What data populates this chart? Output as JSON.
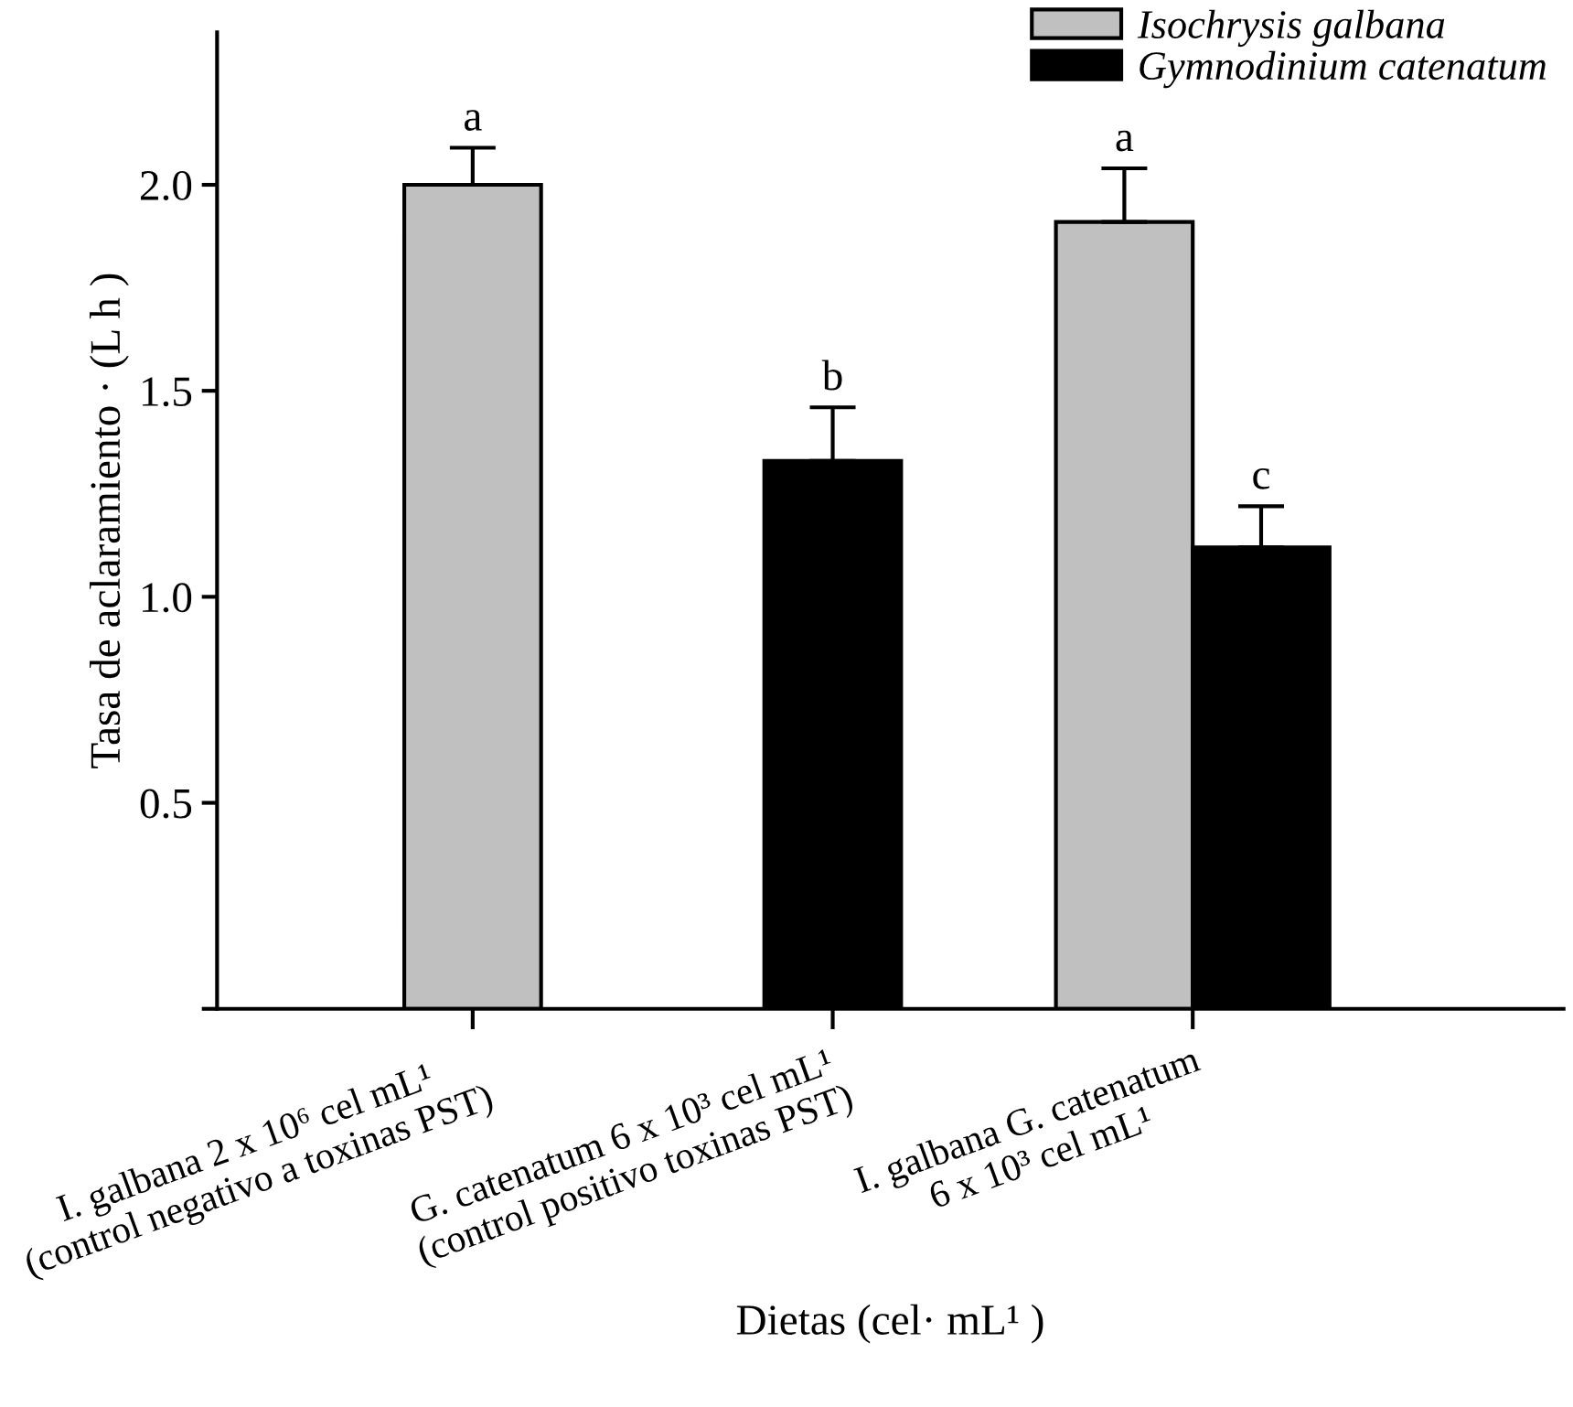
{
  "chart_data": {
    "type": "bar",
    "categories": [
      "I. galbana 2 x 10⁶ cel mL¹\n(control negativo a toxinas PST)",
      "G. catenatum 6 x 10³ cel mL¹\n(control positivo toxinas PST)",
      "I. galbana G. catenatum\n6 x 10³ cel mL¹"
    ],
    "series": [
      {
        "name": "Isochrysis galbana",
        "color": "#c0c0c0",
        "values": [
          2.0,
          null,
          1.91
        ],
        "errors": [
          0.09,
          null,
          0.13
        ],
        "value_labels": [
          "a",
          null,
          "a"
        ]
      },
      {
        "name": "Gymnodinium catenatum",
        "color": "#000000",
        "values": [
          null,
          1.33,
          1.12
        ],
        "errors": [
          null,
          0.13,
          0.1
        ],
        "value_labels": [
          null,
          "b",
          "c"
        ]
      }
    ],
    "xlabel": "Dietas (cel· mL¹ )",
    "ylabel": "Tasa de aclaramiento · (L h )",
    "ylim": [
      0,
      2.37
    ],
    "yticks": [
      {
        "value": 0,
        "label": null
      },
      0.5,
      {
        "value": 1,
        "label": "1.0"
      },
      1.5,
      {
        "value": 2,
        "label": "2.0"
      }
    ],
    "grid": false,
    "legend": "top right"
  }
}
